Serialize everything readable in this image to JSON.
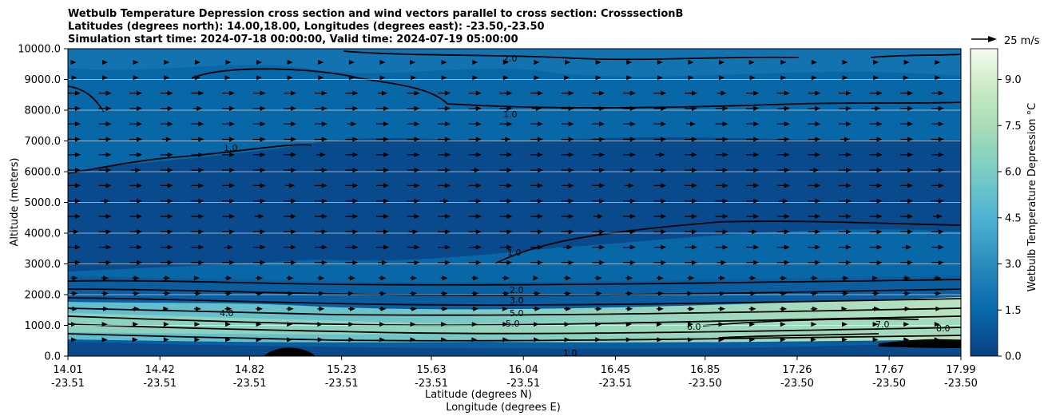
{
  "chart_data": {
    "type": "contour",
    "title_lines": [
      "Wetbulb Temperature Depression cross section and wind vectors parallel to cross section: CrosssectionB",
      "Latitudes (degrees north): 14.00,18.00, Longitudes (degrees east): -23.50,-23.50",
      "Simulation start time: 2024-07-18 00:00:00, Valid time: 2024-07-19 05:00:00"
    ],
    "ylabel": "Altitude (meters)",
    "xlabel_lat": "Latitude (degrees N)",
    "xlabel_lon": "Longitude (degrees E)",
    "ylim": [
      0,
      10000
    ],
    "y_ticks": [
      "0.0",
      "1000.0",
      "2000.0",
      "3000.0",
      "4000.0",
      "5000.0",
      "6000.0",
      "7000.0",
      "8000.0",
      "9000.0",
      "10000.0"
    ],
    "x_ticks": [
      {
        "lat": "14.01",
        "lon": "-23.51"
      },
      {
        "lat": "14.42",
        "lon": "-23.51"
      },
      {
        "lat": "14.82",
        "lon": "-23.51"
      },
      {
        "lat": "15.23",
        "lon": "-23.51"
      },
      {
        "lat": "15.63",
        "lon": "-23.51"
      },
      {
        "lat": "16.04",
        "lon": "-23.51"
      },
      {
        "lat": "16.45",
        "lon": "-23.51"
      },
      {
        "lat": "16.85",
        "lon": "-23.50"
      },
      {
        "lat": "17.26",
        "lon": "-23.50"
      },
      {
        "lat": "17.67",
        "lon": "-23.50"
      },
      {
        "lat": "17.99",
        "lon": "-23.50"
      }
    ],
    "colorbar": {
      "label": "Wetbulb Temperature Depression °C",
      "ticks": [
        "0.0",
        "1.5",
        "3.0",
        "4.5",
        "6.0",
        "7.5",
        "9.0"
      ],
      "range": [
        0,
        10
      ]
    },
    "quiver_key": "25 m/s",
    "contour_labels": [
      "1.0",
      "2.0",
      "3.0",
      "4.0",
      "5.0",
      "6.0",
      "7.0",
      "8.0"
    ],
    "grid": "horizontal",
    "colormap": "GnBu_r",
    "colors": {
      "low": "#084081",
      "mid": "#4eb3d3",
      "high": "#f7fcf0"
    }
  }
}
